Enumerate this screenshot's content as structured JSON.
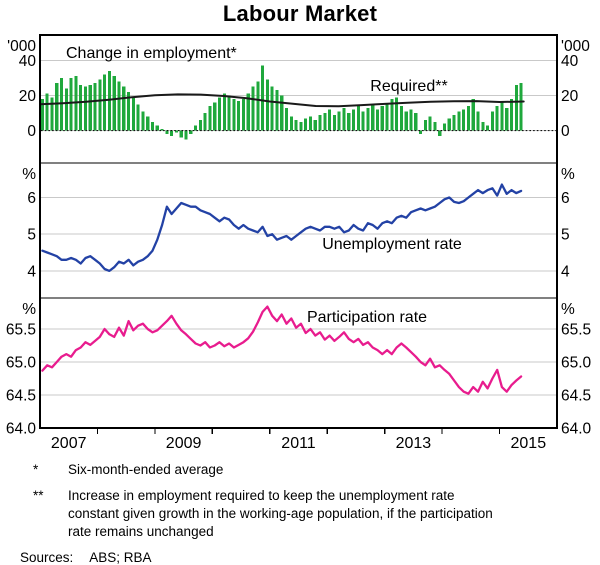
{
  "title": "Labour Market",
  "colors": {
    "green": "#1fa83c",
    "blue": "#2342a5",
    "pink": "#e81c8e",
    "black_line": "#1a1a1a",
    "gridline": "#c9c9c9",
    "frame": "#000000"
  },
  "x_axis": {
    "xlim": [
      2007,
      2016
    ],
    "frequency": "monthly",
    "start": "2007-01",
    "end": "2015-05",
    "year_tick_values": [
      2008,
      2009,
      2010,
      2011,
      2012,
      2013,
      2014,
      2015
    ],
    "labels": [
      {
        "t": 2007.5,
        "text": "2007"
      },
      {
        "t": 2009.5,
        "text": "2009"
      },
      {
        "t": 2011.5,
        "text": "2011"
      },
      {
        "t": 2013.5,
        "text": "2013"
      },
      {
        "t": 2015.5,
        "text": "2015"
      }
    ]
  },
  "chart_data": [
    {
      "type": "bar",
      "name": "change-in-employment",
      "label": "Change in employment*",
      "unit": "'000",
      "ylim": [
        -18.5,
        54.5
      ],
      "yticks": [
        {
          "v": 0,
          "text": "0"
        },
        {
          "v": 20,
          "text": "20"
        },
        {
          "v": 40,
          "text": "40"
        }
      ],
      "values": [
        18,
        21,
        19,
        27,
        30,
        24,
        30,
        31,
        26,
        25,
        26,
        27,
        29,
        32,
        34,
        31,
        28,
        25,
        22,
        19,
        15,
        11,
        8,
        5,
        3,
        1,
        -2,
        -3,
        -1,
        -4,
        -5,
        -2,
        3,
        6,
        10,
        14,
        16,
        19,
        21,
        20,
        18,
        17,
        18,
        21,
        25,
        28,
        37,
        29,
        25,
        23,
        20,
        13,
        8,
        6,
        5,
        7,
        8,
        6,
        9,
        10,
        12,
        9,
        11,
        13,
        10,
        12,
        14,
        11,
        13,
        15,
        12,
        14,
        15,
        18,
        19,
        14,
        11,
        12,
        10,
        -2,
        6,
        8,
        5,
        -3,
        4,
        7,
        9,
        11,
        12,
        14,
        18,
        11,
        5,
        3,
        11,
        14,
        16,
        13,
        18,
        26,
        27
      ],
      "secondary_line": {
        "label": "Required**",
        "points": [
          [
            2007.0,
            15.0
          ],
          [
            2007.4,
            15.6
          ],
          [
            2007.8,
            16.4
          ],
          [
            2008.2,
            17.6
          ],
          [
            2008.6,
            19.0
          ],
          [
            2009.0,
            20.1
          ],
          [
            2009.4,
            20.6
          ],
          [
            2009.8,
            20.5
          ],
          [
            2010.2,
            19.7
          ],
          [
            2010.6,
            18.4
          ],
          [
            2011.0,
            16.6
          ],
          [
            2011.4,
            15.3
          ],
          [
            2011.8,
            14.0
          ],
          [
            2012.2,
            13.9
          ],
          [
            2012.6,
            14.5
          ],
          [
            2013.0,
            15.2
          ],
          [
            2013.4,
            15.9
          ],
          [
            2013.8,
            16.4
          ],
          [
            2014.2,
            16.7
          ],
          [
            2014.6,
            16.8
          ],
          [
            2015.0,
            16.3
          ],
          [
            2015.42,
            16.6
          ]
        ]
      }
    },
    {
      "type": "line",
      "name": "unemployment-rate",
      "label": "Unemployment rate",
      "unit": "%",
      "ylim": [
        3.26,
        6.94
      ],
      "yticks": [
        {
          "v": 4,
          "text": "4"
        },
        {
          "v": 5,
          "text": "5"
        },
        {
          "v": 6,
          "text": "6"
        }
      ],
      "values": [
        4.55,
        4.5,
        4.45,
        4.4,
        4.3,
        4.3,
        4.35,
        4.3,
        4.2,
        4.35,
        4.4,
        4.3,
        4.2,
        4.05,
        4.0,
        4.1,
        4.25,
        4.2,
        4.3,
        4.15,
        4.25,
        4.3,
        4.4,
        4.55,
        4.85,
        5.25,
        5.75,
        5.55,
        5.7,
        5.85,
        5.8,
        5.75,
        5.75,
        5.65,
        5.6,
        5.55,
        5.45,
        5.35,
        5.45,
        5.4,
        5.25,
        5.15,
        5.25,
        5.15,
        5.1,
        5.05,
        5.2,
        4.95,
        5.0,
        4.85,
        4.9,
        4.95,
        4.85,
        4.95,
        5.05,
        5.15,
        5.2,
        5.15,
        5.1,
        5.2,
        5.2,
        5.15,
        5.2,
        5.05,
        5.1,
        5.25,
        5.15,
        5.1,
        5.3,
        5.25,
        5.15,
        5.3,
        5.35,
        5.3,
        5.45,
        5.5,
        5.45,
        5.6,
        5.65,
        5.7,
        5.65,
        5.7,
        5.75,
        5.85,
        5.95,
        6.0,
        5.88,
        5.85,
        5.9,
        6.0,
        6.1,
        6.2,
        6.12,
        6.2,
        6.25,
        6.05,
        6.35,
        6.1,
        6.2,
        6.12,
        6.18
      ]
    },
    {
      "type": "line",
      "name": "participation-rate",
      "label": "Participation rate",
      "unit": "%",
      "ylim": [
        64.0,
        65.97
      ],
      "yticks": [
        {
          "v": 64.0,
          "text": "64.0"
        },
        {
          "v": 64.5,
          "text": "64.5"
        },
        {
          "v": 65.0,
          "text": "65.0"
        },
        {
          "v": 65.5,
          "text": "65.5"
        }
      ],
      "values": [
        64.87,
        64.95,
        64.92,
        65.0,
        65.08,
        65.12,
        65.08,
        65.18,
        65.22,
        65.3,
        65.26,
        65.32,
        65.38,
        65.5,
        65.42,
        65.38,
        65.52,
        65.4,
        65.62,
        65.48,
        65.55,
        65.58,
        65.5,
        65.45,
        65.48,
        65.55,
        65.62,
        65.7,
        65.58,
        65.48,
        65.42,
        65.35,
        65.28,
        65.25,
        65.3,
        65.22,
        65.25,
        65.3,
        65.24,
        65.28,
        65.22,
        65.26,
        65.3,
        65.36,
        65.46,
        65.6,
        65.76,
        65.84,
        65.7,
        65.62,
        65.72,
        65.58,
        65.66,
        65.52,
        65.58,
        65.44,
        65.5,
        65.4,
        65.45,
        65.34,
        65.4,
        65.32,
        65.38,
        65.45,
        65.35,
        65.3,
        65.35,
        65.26,
        65.3,
        65.22,
        65.18,
        65.12,
        65.18,
        65.12,
        65.22,
        65.28,
        65.22,
        65.15,
        65.08,
        65.0,
        64.95,
        65.05,
        64.92,
        64.95,
        64.88,
        64.82,
        64.72,
        64.62,
        64.55,
        64.52,
        64.62,
        64.55,
        64.7,
        64.6,
        64.75,
        64.88,
        64.62,
        64.55,
        64.65,
        64.72,
        64.78
      ]
    }
  ],
  "footnotes": [
    {
      "marker": "*",
      "lines": [
        "Six-month-ended average"
      ]
    },
    {
      "marker": "**",
      "lines": [
        "Increase in employment required to keep the unemployment rate",
        "constant given growth in the working-age population, if the participation",
        "rate remains unchanged"
      ]
    }
  ],
  "sources": {
    "label": "Sources:",
    "value": "ABS; RBA"
  }
}
